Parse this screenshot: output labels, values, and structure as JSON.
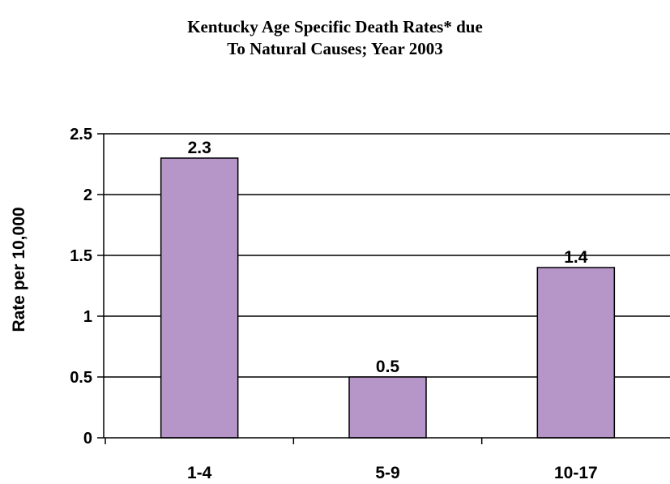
{
  "chart_data": {
    "type": "bar",
    "title_lines": [
      "Kentucky Age Specific Death Rates* due",
      "To Natural Causes; Year 2003"
    ],
    "ylabel": "Rate per 10,000",
    "xlabel": "",
    "categories": [
      "1-4",
      "5-9",
      "10-17"
    ],
    "values": [
      2.3,
      0.5,
      1.4
    ],
    "data_labels": [
      "2.3",
      "0.5",
      "1.4"
    ],
    "ylim": [
      0,
      2.5
    ],
    "yticks": [
      0,
      0.5,
      1,
      1.5,
      2,
      2.5
    ],
    "ytick_labels": [
      "0",
      "0.5",
      "1",
      "1.5",
      "2",
      "2.5"
    ],
    "grid": true,
    "legend": "none",
    "bar_color": "#b695c8",
    "bar_edge_color": "#000000"
  }
}
